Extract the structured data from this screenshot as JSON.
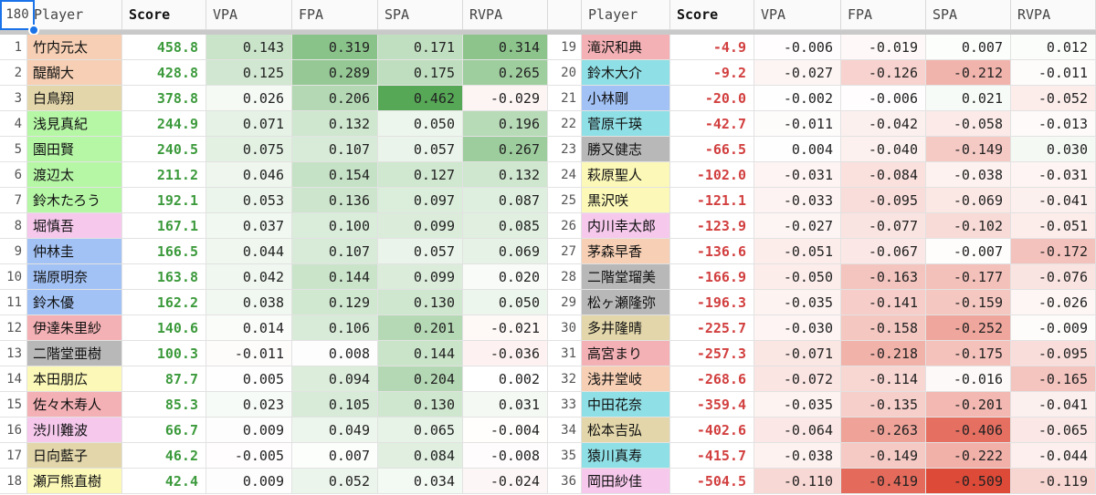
{
  "corner_label": "180",
  "headers": {
    "player": "Player",
    "score": "Score",
    "vpa": "VPA",
    "fpa": "FPA",
    "spa": "SPA",
    "rvpa": "RVPA"
  },
  "colors": {
    "score_positive": "#3c9a3c",
    "score_negative": "#d23f3f",
    "header_bg": "#fafafa",
    "select_blue": "#1a73e8"
  },
  "left": [
    {
      "n": "1",
      "name": "竹内元太",
      "color": "#f6cfb4",
      "score": "458.8",
      "vpa": "0.143",
      "fpa": "0.319",
      "spa": "0.171",
      "rvpa": "0.314"
    },
    {
      "n": "2",
      "name": "醍醐大",
      "color": "#f6cfb4",
      "score": "428.8",
      "vpa": "0.125",
      "fpa": "0.289",
      "spa": "0.175",
      "rvpa": "0.265"
    },
    {
      "n": "3",
      "name": "白鳥翔",
      "color": "#e2d6aa",
      "score": "378.8",
      "vpa": "0.026",
      "fpa": "0.206",
      "spa": "0.462",
      "rvpa": "-0.029"
    },
    {
      "n": "4",
      "name": "浅見真紀",
      "color": "#b6f7a6",
      "score": "244.9",
      "vpa": "0.071",
      "fpa": "0.132",
      "spa": "0.050",
      "rvpa": "0.196"
    },
    {
      "n": "5",
      "name": "園田賢",
      "color": "#b6f7a6",
      "score": "240.5",
      "vpa": "0.075",
      "fpa": "0.107",
      "spa": "0.057",
      "rvpa": "0.267"
    },
    {
      "n": "6",
      "name": "渡辺太",
      "color": "#b6f7a6",
      "score": "211.2",
      "vpa": "0.046",
      "fpa": "0.154",
      "spa": "0.127",
      "rvpa": "0.132"
    },
    {
      "n": "7",
      "name": "鈴木たろう",
      "color": "#b6f7a6",
      "score": "192.1",
      "vpa": "0.053",
      "fpa": "0.136",
      "spa": "0.097",
      "rvpa": "0.087"
    },
    {
      "n": "8",
      "name": "堀慎吾",
      "color": "#f5c8ec",
      "score": "167.1",
      "vpa": "0.037",
      "fpa": "0.100",
      "spa": "0.099",
      "rvpa": "0.085"
    },
    {
      "n": "9",
      "name": "仲林圭",
      "color": "#a2c2f6",
      "score": "166.5",
      "vpa": "0.044",
      "fpa": "0.107",
      "spa": "0.057",
      "rvpa": "0.069"
    },
    {
      "n": "10",
      "name": "瑞原明奈",
      "color": "#a2c2f6",
      "score": "163.8",
      "vpa": "0.042",
      "fpa": "0.144",
      "spa": "0.099",
      "rvpa": "0.020"
    },
    {
      "n": "11",
      "name": "鈴木優",
      "color": "#a2c2f6",
      "score": "162.2",
      "vpa": "0.038",
      "fpa": "0.129",
      "spa": "0.130",
      "rvpa": "0.050"
    },
    {
      "n": "12",
      "name": "伊達朱里紗",
      "color": "#f4b1b5",
      "score": "140.6",
      "vpa": "0.014",
      "fpa": "0.106",
      "spa": "0.201",
      "rvpa": "-0.021"
    },
    {
      "n": "13",
      "name": "二階堂亜樹",
      "color": "#b8b8b8",
      "score": "100.3",
      "vpa": "-0.011",
      "fpa": "0.008",
      "spa": "0.144",
      "rvpa": "-0.036"
    },
    {
      "n": "14",
      "name": "本田朋広",
      "color": "#fbf8b8",
      "score": "87.7",
      "vpa": "0.005",
      "fpa": "0.094",
      "spa": "0.204",
      "rvpa": "0.002"
    },
    {
      "n": "15",
      "name": "佐々木寿人",
      "color": "#f4b1b5",
      "score": "85.3",
      "vpa": "0.023",
      "fpa": "0.105",
      "spa": "0.130",
      "rvpa": "0.031"
    },
    {
      "n": "16",
      "name": "渋川難波",
      "color": "#f5c8ec",
      "score": "66.7",
      "vpa": "0.009",
      "fpa": "0.049",
      "spa": "0.065",
      "rvpa": "-0.004"
    },
    {
      "n": "17",
      "name": "日向藍子",
      "color": "#e2d6aa",
      "score": "46.2",
      "vpa": "-0.005",
      "fpa": "0.007",
      "spa": "0.084",
      "rvpa": "-0.008"
    },
    {
      "n": "18",
      "name": "瀬戸熊直樹",
      "color": "#fbf8b8",
      "score": "42.4",
      "vpa": "0.009",
      "fpa": "0.052",
      "spa": "0.034",
      "rvpa": "-0.024"
    }
  ],
  "right": [
    {
      "n": "19",
      "name": "滝沢和典",
      "color": "#f4b1b5",
      "score": "-4.9",
      "vpa": "-0.006",
      "fpa": "-0.019",
      "spa": "0.007",
      "rvpa": "0.012"
    },
    {
      "n": "20",
      "name": "鈴木大介",
      "color": "#8fe0e6",
      "score": "-9.2",
      "vpa": "-0.027",
      "fpa": "-0.126",
      "spa": "-0.212",
      "rvpa": "-0.011"
    },
    {
      "n": "21",
      "name": "小林剛",
      "color": "#a2c2f6",
      "score": "-20.0",
      "vpa": "-0.002",
      "fpa": "-0.006",
      "spa": "0.021",
      "rvpa": "-0.052"
    },
    {
      "n": "22",
      "name": "菅原千瑛",
      "color": "#8fe0e6",
      "score": "-42.7",
      "vpa": "-0.011",
      "fpa": "-0.042",
      "spa": "-0.058",
      "rvpa": "-0.013"
    },
    {
      "n": "23",
      "name": "勝又健志",
      "color": "#b8b8b8",
      "score": "-66.5",
      "vpa": "0.004",
      "fpa": "-0.040",
      "spa": "-0.149",
      "rvpa": "0.030"
    },
    {
      "n": "24",
      "name": "萩原聖人",
      "color": "#fbf8b8",
      "score": "-102.0",
      "vpa": "-0.031",
      "fpa": "-0.084",
      "spa": "-0.038",
      "rvpa": "-0.031"
    },
    {
      "n": "25",
      "name": "黒沢咲",
      "color": "#fbf8b8",
      "score": "-121.1",
      "vpa": "-0.033",
      "fpa": "-0.095",
      "spa": "-0.069",
      "rvpa": "-0.041"
    },
    {
      "n": "26",
      "name": "内川幸太郎",
      "color": "#f5c8ec",
      "score": "-123.9",
      "vpa": "-0.027",
      "fpa": "-0.077",
      "spa": "-0.102",
      "rvpa": "-0.051"
    },
    {
      "n": "27",
      "name": "茅森早香",
      "color": "#f6cfb4",
      "score": "-136.6",
      "vpa": "-0.051",
      "fpa": "-0.067",
      "spa": "-0.007",
      "rvpa": "-0.172"
    },
    {
      "n": "28",
      "name": "二階堂瑠美",
      "color": "#b8b8b8",
      "score": "-166.9",
      "vpa": "-0.050",
      "fpa": "-0.163",
      "spa": "-0.177",
      "rvpa": "-0.076"
    },
    {
      "n": "29",
      "name": "松ヶ瀬隆弥",
      "color": "#b8b8b8",
      "score": "-196.3",
      "vpa": "-0.035",
      "fpa": "-0.141",
      "spa": "-0.159",
      "rvpa": "-0.026"
    },
    {
      "n": "30",
      "name": "多井隆晴",
      "color": "#e2d6aa",
      "score": "-225.7",
      "vpa": "-0.030",
      "fpa": "-0.158",
      "spa": "-0.252",
      "rvpa": "-0.009"
    },
    {
      "n": "31",
      "name": "高宮まり",
      "color": "#f4b1b5",
      "score": "-257.3",
      "vpa": "-0.071",
      "fpa": "-0.218",
      "spa": "-0.175",
      "rvpa": "-0.095"
    },
    {
      "n": "32",
      "name": "浅井堂岐",
      "color": "#f6cfb4",
      "score": "-268.6",
      "vpa": "-0.072",
      "fpa": "-0.114",
      "spa": "-0.016",
      "rvpa": "-0.165"
    },
    {
      "n": "33",
      "name": "中田花奈",
      "color": "#8fe0e6",
      "score": "-359.4",
      "vpa": "-0.035",
      "fpa": "-0.135",
      "spa": "-0.201",
      "rvpa": "-0.041"
    },
    {
      "n": "34",
      "name": "松本吉弘",
      "color": "#e2d6aa",
      "score": "-402.6",
      "vpa": "-0.064",
      "fpa": "-0.263",
      "spa": "-0.406",
      "rvpa": "-0.065"
    },
    {
      "n": "35",
      "name": "猿川真寿",
      "color": "#8fe0e6",
      "score": "-415.7",
      "vpa": "-0.038",
      "fpa": "-0.149",
      "spa": "-0.222",
      "rvpa": "-0.044"
    },
    {
      "n": "36",
      "name": "岡田紗佳",
      "color": "#f5c8ec",
      "score": "-504.5",
      "vpa": "-0.110",
      "fpa": "-0.419",
      "spa": "-0.509",
      "rvpa": "-0.119"
    }
  ]
}
